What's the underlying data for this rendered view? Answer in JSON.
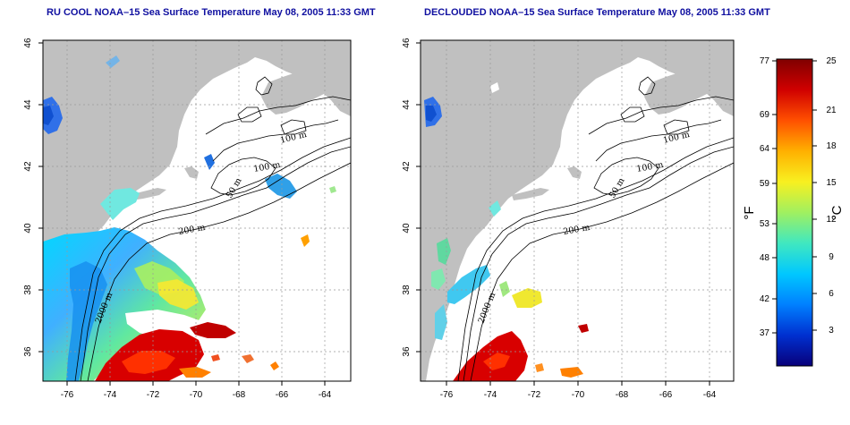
{
  "panels": [
    {
      "id": "p1",
      "title": "RU COOL NOAA–15 Sea Surface Temperature May 08, 2005 11:33 GMT"
    },
    {
      "id": "p2",
      "title": "DECLOUDED NOAA–15 Sea Surface Temperature May 08, 2005 11:33 GMT"
    }
  ],
  "axes": {
    "x_ticks": [
      "-76",
      "-74",
      "-72",
      "-70",
      "-68",
      "-66",
      "-64"
    ],
    "y_ticks": [
      "46",
      "44",
      "42",
      "40",
      "38",
      "36"
    ]
  },
  "contour_labels": {
    "c100a": "100 m",
    "c100b": "100 m",
    "c50": "50 m",
    "c200": "200 m",
    "c2000": "2000 m"
  },
  "colorbar": {
    "fahrenheit_ticks": [
      "77",
      "69",
      "64",
      "59",
      "53",
      "48",
      "42",
      "37"
    ],
    "celsius_ticks": [
      "25",
      "21",
      "18",
      "15",
      "12",
      "9",
      "6",
      "3"
    ],
    "fahrenheit_label": "°F",
    "celsius_label": "°C",
    "colors": [
      "#08007a",
      "#0030d0",
      "#0080ff",
      "#00c8ff",
      "#40e8c0",
      "#a0f060",
      "#f8f020",
      "#ffb000",
      "#ff5000",
      "#d00000",
      "#800000"
    ]
  }
}
